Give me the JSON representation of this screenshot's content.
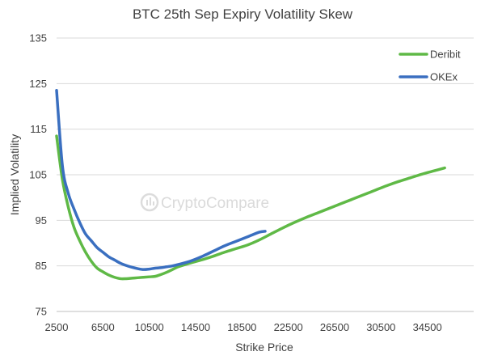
{
  "chart_data": {
    "type": "line",
    "title": "BTC 25th Sep Expiry Volatility Skew",
    "xlabel": "Strike Price",
    "ylabel": "Implied Volatility",
    "xlim": [
      2500,
      38500
    ],
    "ylim": [
      75,
      135
    ],
    "x_ticks": [
      2500,
      6500,
      10500,
      14500,
      18500,
      22500,
      26500,
      30500,
      34500
    ],
    "y_ticks": [
      75,
      85,
      95,
      105,
      115,
      125,
      135
    ],
    "grid": "horizontal",
    "legend_position": "top-right",
    "watermark": "CryptoCompare",
    "series": [
      {
        "name": "Deribit",
        "color": "#5fb946",
        "x": [
          2500,
          3000,
          3500,
          4000,
          4500,
          5000,
          5500,
          6000,
          6500,
          7000,
          7500,
          8000,
          8500,
          9000,
          9500,
          10000,
          10500,
          11000,
          11500,
          12000,
          12500,
          13000,
          14000,
          15000,
          16000,
          17000,
          18000,
          19000,
          20000,
          21000,
          22000,
          23000,
          24000,
          25000,
          26000,
          27000,
          28000,
          29000,
          30000,
          31000,
          32000,
          33000,
          34000,
          35000,
          36000
        ],
        "values": [
          113.5,
          104,
          98,
          93.5,
          90.5,
          88,
          86,
          84.5,
          83.7,
          83,
          82.5,
          82.2,
          82.2,
          82.3,
          82.4,
          82.5,
          82.6,
          82.7,
          83.1,
          83.6,
          84.2,
          84.8,
          85.6,
          86.3,
          87.1,
          88.0,
          88.8,
          89.6,
          90.7,
          92.0,
          93.3,
          94.5,
          95.6,
          96.6,
          97.6,
          98.6,
          99.6,
          100.6,
          101.6,
          102.6,
          103.5,
          104.3,
          105.1,
          105.8,
          106.5
        ]
      },
      {
        "name": "OKEx",
        "color": "#3a6fc0",
        "x": [
          2500,
          3000,
          3500,
          4000,
          4500,
          5000,
          5500,
          6000,
          6500,
          7000,
          7500,
          8000,
          8500,
          9000,
          9500,
          10000,
          10500,
          11000,
          11500,
          12000,
          12500,
          13000,
          14000,
          15000,
          16000,
          17000,
          18000,
          19000,
          20000,
          20500
        ],
        "values": [
          123.5,
          107,
          101,
          97.5,
          94.5,
          92,
          90.5,
          89,
          88,
          87,
          86.3,
          85.6,
          85.1,
          84.7,
          84.4,
          84.2,
          84.3,
          84.5,
          84.6,
          84.8,
          85.0,
          85.3,
          86.0,
          87.0,
          88.2,
          89.4,
          90.4,
          91.4,
          92.4,
          92.6
        ]
      }
    ]
  }
}
